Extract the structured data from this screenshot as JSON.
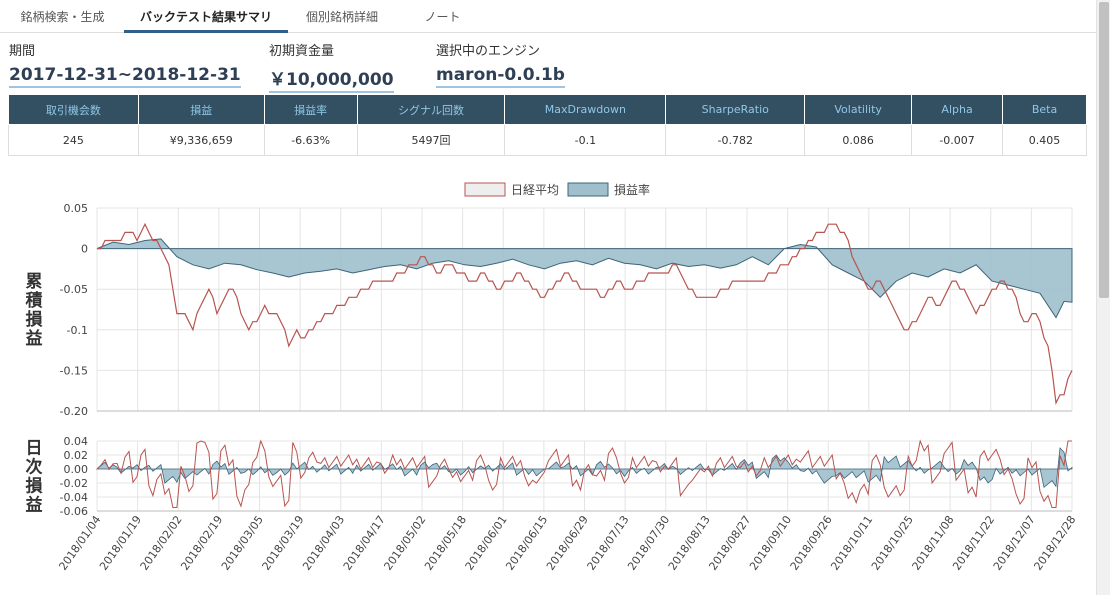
{
  "tabs": [
    {
      "label": "銘柄検索・生成",
      "active": false
    },
    {
      "label": "バックテスト結果サマリ",
      "active": true
    },
    {
      "label": "個別銘柄詳細",
      "active": false
    },
    {
      "label": "ノート",
      "active": false
    }
  ],
  "info": {
    "period_label": "期間",
    "period_value": "2017-12-31~2018-12-31",
    "capital_label": "初期資金量",
    "capital_value": "￥10,000,000",
    "engine_label": "選択中のエンジン",
    "engine_value": "maron-0.0.1b"
  },
  "summary": {
    "headers": [
      "取引機会数",
      "損益",
      "損益率",
      "シグナル回数",
      "MaxDrawdown",
      "SharpeRatio",
      "Volatility",
      "Alpha",
      "Beta"
    ],
    "values": [
      "245",
      "¥9,336,659",
      "-6.63%",
      "5497回",
      "-0.1",
      "-0.782",
      "0.086",
      "-0.007",
      "0.405"
    ]
  },
  "colors": {
    "nikkei": "#b85450",
    "pnl_fill": "#9fbfcd",
    "pnl_line": "#3d6478",
    "header_bg": "#334f62",
    "header_text": "#8fc8e6"
  },
  "chart_data": {
    "type": "line",
    "legend": [
      "日経平均",
      "損益率"
    ],
    "legend_position": "top-center",
    "x_tick_labels": [
      "2018/01/04",
      "2018/01/19",
      "2018/02/02",
      "2018/02/19",
      "2018/03/05",
      "2018/03/19",
      "2018/04/03",
      "2018/04/17",
      "2018/05/02",
      "2018/05/18",
      "2018/06/01",
      "2018/06/15",
      "2018/06/29",
      "2018/07/13",
      "2018/07/30",
      "2018/08/13",
      "2018/08/27",
      "2018/09/10",
      "2018/09/26",
      "2018/10/11",
      "2018/10/25",
      "2018/11/08",
      "2018/11/22",
      "2018/12/07",
      "2018/12/28"
    ],
    "cumulative": {
      "ylabel": "累積損益",
      "ylim": [
        -0.2,
        0.05
      ],
      "yticks": [
        "0.05",
        "0",
        "-0.05",
        "-0.1",
        "-0.15",
        "-0.20"
      ],
      "series": [
        {
          "name": "日経平均",
          "x": [
            0,
            4,
            6,
            8,
            10,
            12,
            14,
            16,
            18,
            20,
            22,
            24,
            26,
            28,
            30,
            32,
            34,
            36,
            38,
            40,
            42,
            44,
            46,
            48,
            50,
            52,
            55,
            58,
            61,
            64,
            67,
            70,
            73,
            76,
            79,
            82,
            85,
            88,
            91,
            94,
            97,
            100,
            103,
            106,
            109,
            112,
            115,
            118,
            121,
            124,
            127,
            130,
            133,
            136,
            139,
            142,
            145,
            148,
            151,
            154,
            157,
            160,
            163,
            166,
            169,
            172,
            175,
            178,
            181,
            184,
            187,
            190,
            193,
            196,
            199,
            202,
            205,
            208,
            211,
            214,
            217,
            220,
            223,
            226,
            229,
            232,
            235,
            238,
            240,
            242,
            244
          ],
          "values": [
            0,
            0.01,
            0.01,
            0.02,
            0.01,
            0.03,
            0.01,
            0.0,
            -0.02,
            -0.08,
            -0.08,
            -0.1,
            -0.07,
            -0.05,
            -0.08,
            -0.06,
            -0.05,
            -0.08,
            -0.1,
            -0.09,
            -0.07,
            -0.08,
            -0.09,
            -0.12,
            -0.1,
            -0.11,
            -0.09,
            -0.08,
            -0.07,
            -0.06,
            -0.05,
            -0.04,
            -0.04,
            -0.03,
            -0.02,
            -0.01,
            -0.03,
            -0.02,
            -0.03,
            -0.04,
            -0.03,
            -0.05,
            -0.04,
            -0.03,
            -0.05,
            -0.06,
            -0.04,
            -0.03,
            -0.05,
            -0.05,
            -0.06,
            -0.04,
            -0.05,
            -0.04,
            -0.03,
            -0.03,
            -0.02,
            -0.05,
            -0.06,
            -0.06,
            -0.05,
            -0.04,
            -0.04,
            -0.04,
            -0.03,
            -0.02,
            -0.01,
            0.01,
            0.02,
            0.03,
            0.02,
            -0.02,
            -0.05,
            -0.04,
            -0.07,
            -0.1,
            -0.09,
            -0.06,
            -0.07,
            -0.04,
            -0.05,
            -0.08,
            -0.06,
            -0.04,
            -0.05,
            -0.09,
            -0.08,
            -0.12,
            -0.19,
            -0.18,
            -0.15
          ]
        },
        {
          "name": "損益率",
          "x": [
            0,
            4,
            8,
            12,
            16,
            20,
            24,
            28,
            32,
            36,
            40,
            44,
            48,
            52,
            56,
            60,
            64,
            68,
            72,
            76,
            80,
            84,
            88,
            92,
            96,
            100,
            104,
            108,
            112,
            116,
            120,
            124,
            128,
            132,
            136,
            140,
            144,
            148,
            152,
            156,
            160,
            164,
            168,
            172,
            176,
            180,
            184,
            188,
            192,
            196,
            200,
            204,
            208,
            212,
            216,
            220,
            224,
            228,
            232,
            236,
            240,
            242,
            244
          ],
          "values": [
            0,
            0.008,
            0.005,
            0.01,
            0.012,
            -0.01,
            -0.02,
            -0.025,
            -0.018,
            -0.02,
            -0.026,
            -0.03,
            -0.035,
            -0.03,
            -0.028,
            -0.025,
            -0.03,
            -0.026,
            -0.022,
            -0.02,
            -0.025,
            -0.018,
            -0.015,
            -0.02,
            -0.022,
            -0.018,
            -0.013,
            -0.02,
            -0.025,
            -0.018,
            -0.015,
            -0.02,
            -0.012,
            -0.018,
            -0.02,
            -0.025,
            -0.018,
            -0.022,
            -0.02,
            -0.024,
            -0.02,
            -0.01,
            -0.02,
            0.0,
            0.005,
            0.002,
            -0.02,
            -0.03,
            -0.04,
            -0.06,
            -0.04,
            -0.03,
            -0.035,
            -0.025,
            -0.03,
            -0.02,
            -0.04,
            -0.045,
            -0.05,
            -0.055,
            -0.085,
            -0.065,
            -0.066
          ]
        }
      ]
    },
    "daily": {
      "ylabel": "日次損益",
      "ylim": [
        -0.06,
        0.04
      ],
      "yticks": [
        "0.04",
        "0.02",
        "0.00",
        "-0.02",
        "-0.04",
        "-0.06"
      ]
    }
  }
}
